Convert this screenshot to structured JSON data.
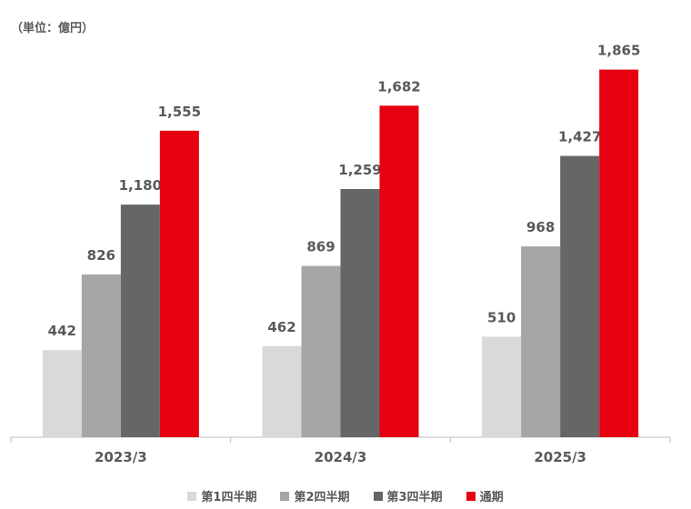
{
  "chart_data": {
    "type": "bar",
    "unit_label": "（単位：億円）",
    "categories": [
      "2023/3",
      "2024/3",
      "2025/3"
    ],
    "series": [
      {
        "name": "第1四半期",
        "color": "#d9d9d9",
        "values": [
          442,
          462,
          510
        ]
      },
      {
        "name": "第2四半期",
        "color": "#a6a6a6",
        "values": [
          826,
          869,
          968
        ]
      },
      {
        "name": "第3四半期",
        "color": "#666666",
        "values": [
          1180,
          1259,
          1427
        ]
      },
      {
        "name": "通期",
        "color": "#e60012",
        "values": [
          1555,
          1682,
          1865
        ]
      }
    ],
    "data_labels": [
      [
        "442",
        "826",
        "1,180",
        "1,555"
      ],
      [
        "462",
        "869",
        "1,259",
        "1,682"
      ],
      [
        "510",
        "968",
        "1,427",
        "1,865"
      ]
    ],
    "ylim": [
      0,
      1900
    ],
    "grid": false,
    "legend_position": "bottom"
  }
}
